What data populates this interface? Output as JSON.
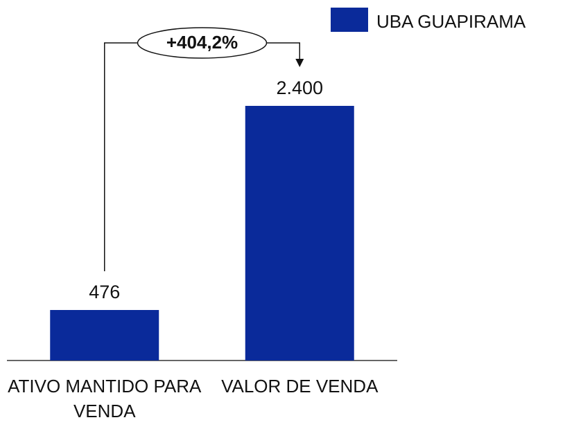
{
  "chart_data": {
    "type": "bar",
    "categories": [
      "ATIVO MANTIDO PARA VENDA",
      "VALOR DE VENDA"
    ],
    "series": [
      {
        "name": "UBA GUAPIRAMA",
        "color": "#0a2a9a",
        "values": [
          476,
          2400
        ],
        "value_labels": [
          "476",
          "2.400"
        ]
      }
    ],
    "annotation": "+404,2%",
    "legend": "top-right"
  }
}
